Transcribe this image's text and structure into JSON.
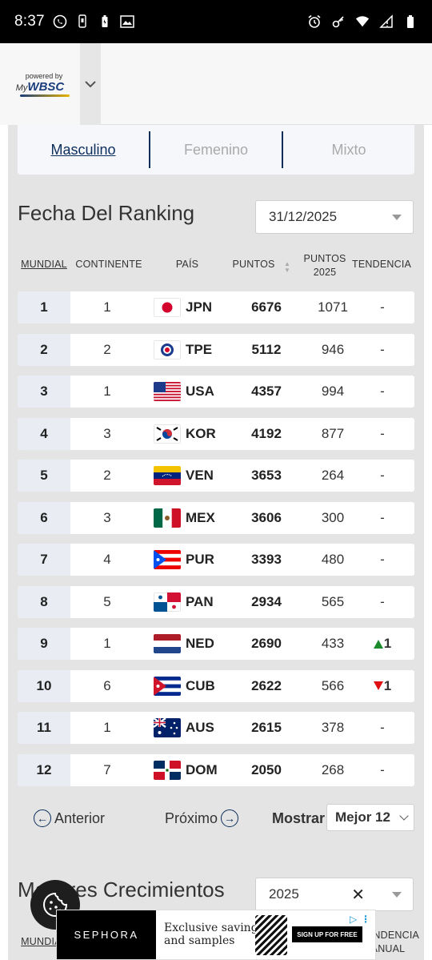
{
  "status_bar": {
    "time": "8:37"
  },
  "header": {
    "logo_powered": "powered by",
    "logo_my": "My",
    "logo_brand": "WBSC"
  },
  "tabs": [
    {
      "label": "Masculino",
      "active": true
    },
    {
      "label": "Femenino",
      "active": false
    },
    {
      "label": "Mixto",
      "active": false
    }
  ],
  "ranking_date": {
    "title": "Fecha Del Ranking",
    "selected": "31/12/2025"
  },
  "table": {
    "headers": {
      "mundial": "MUNDIAL",
      "continente": "CONTINENTE",
      "pais": "PAÍS",
      "puntos": "PUNTOS",
      "puntos2025_line1": "PUNTOS",
      "puntos2025_line2": "2025",
      "tendencia": "TENDENCIA"
    },
    "rows": [
      {
        "rank": "1",
        "continent": "1",
        "code": "JPN",
        "points": "6676",
        "points2025": "1071",
        "trend": "-",
        "trend_dir": "none",
        "flag": "jpn"
      },
      {
        "rank": "2",
        "continent": "2",
        "code": "TPE",
        "points": "5112",
        "points2025": "946",
        "trend": "-",
        "trend_dir": "none",
        "flag": "tpe"
      },
      {
        "rank": "3",
        "continent": "1",
        "code": "USA",
        "points": "4357",
        "points2025": "994",
        "trend": "-",
        "trend_dir": "none",
        "flag": "usa"
      },
      {
        "rank": "4",
        "continent": "3",
        "code": "KOR",
        "points": "4192",
        "points2025": "877",
        "trend": "-",
        "trend_dir": "none",
        "flag": "kor"
      },
      {
        "rank": "5",
        "continent": "2",
        "code": "VEN",
        "points": "3653",
        "points2025": "264",
        "trend": "-",
        "trend_dir": "none",
        "flag": "ven"
      },
      {
        "rank": "6",
        "continent": "3",
        "code": "MEX",
        "points": "3606",
        "points2025": "300",
        "trend": "-",
        "trend_dir": "none",
        "flag": "mex"
      },
      {
        "rank": "7",
        "continent": "4",
        "code": "PUR",
        "points": "3393",
        "points2025": "480",
        "trend": "-",
        "trend_dir": "none",
        "flag": "pur"
      },
      {
        "rank": "8",
        "continent": "5",
        "code": "PAN",
        "points": "2934",
        "points2025": "565",
        "trend": "-",
        "trend_dir": "none",
        "flag": "pan"
      },
      {
        "rank": "9",
        "continent": "1",
        "code": "NED",
        "points": "2690",
        "points2025": "433",
        "trend": "1",
        "trend_dir": "up",
        "flag": "ned"
      },
      {
        "rank": "10",
        "continent": "6",
        "code": "CUB",
        "points": "2622",
        "points2025": "566",
        "trend": "1",
        "trend_dir": "down",
        "flag": "cub"
      },
      {
        "rank": "11",
        "continent": "1",
        "code": "AUS",
        "points": "2615",
        "points2025": "378",
        "trend": "-",
        "trend_dir": "none",
        "flag": "aus"
      },
      {
        "rank": "12",
        "continent": "7",
        "code": "DOM",
        "points": "2050",
        "points2025": "268",
        "trend": "-",
        "trend_dir": "none",
        "flag": "dom"
      }
    ]
  },
  "pagination": {
    "prev_label": "Anterior",
    "next_label": "Próximo",
    "show_label": "Mostrar",
    "show_selected": "Mejor 12"
  },
  "growth": {
    "title": "Mayores Crecimientos",
    "selected_year": "2025",
    "header_mundial": "MUNDIAL",
    "header_tendencia_1": "TENDENCIA",
    "header_tendencia_2": "ANUAL"
  },
  "ad": {
    "brand": "SEPHORA",
    "text_line1": "Exclusive savings",
    "text_line2": "and samples",
    "cta": "SIGN UP FOR FREE"
  },
  "colors": {
    "accent": "#0b2e5c",
    "content_bg": "#e4e4e4",
    "rank_cell_bg": "#e9edf3",
    "trend_up": "#1a8a2a",
    "trend_down": "#e01010"
  }
}
